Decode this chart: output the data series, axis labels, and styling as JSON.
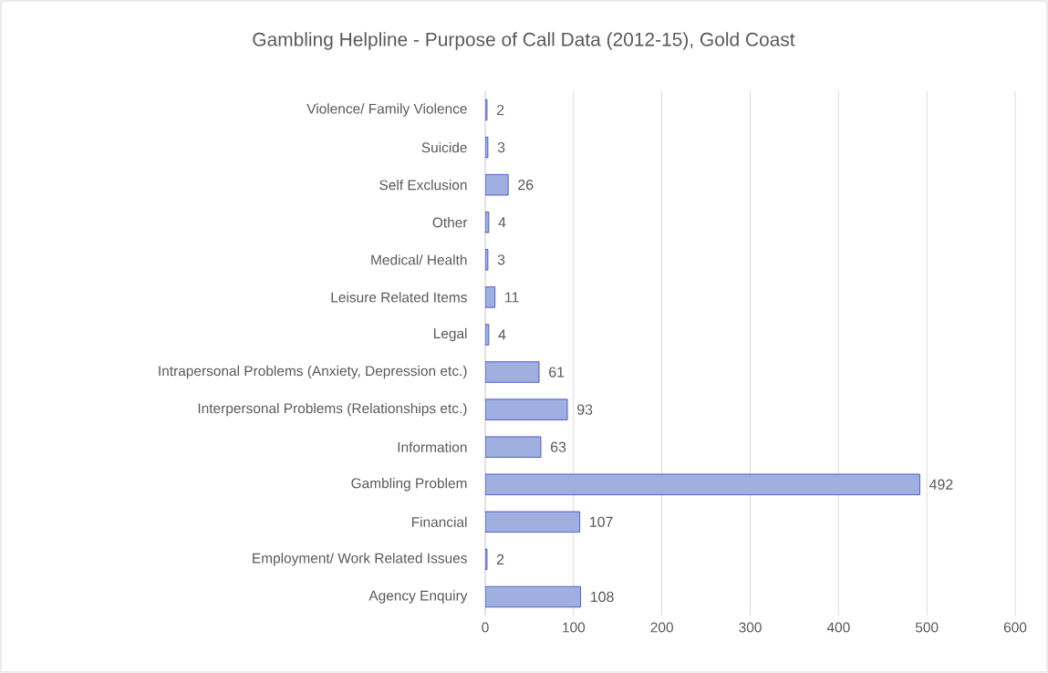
{
  "chart_data": {
    "type": "bar",
    "orientation": "horizontal",
    "title": "Gambling Helpline - Purpose of Call Data (2012-15), Gold Coast",
    "categories": [
      "Violence/ Family Violence",
      "Suicide",
      "Self Exclusion",
      "Other",
      "Medical/ Health",
      "Leisure Related Items",
      "Legal",
      "Intrapersonal Problems (Anxiety, Depression etc.)",
      "Interpersonal Problems (Relationships etc.)",
      "Information",
      "Gambling Problem",
      "Financial",
      "Employment/ Work Related Issues",
      "Agency Enquiry"
    ],
    "values": [
      2,
      3,
      26,
      4,
      3,
      11,
      4,
      61,
      93,
      63,
      492,
      107,
      2,
      108
    ],
    "color": "#9fb0e0",
    "xlim": [
      0,
      600
    ],
    "xticks": [
      0,
      100,
      200,
      300,
      400,
      500,
      600
    ],
    "grid": "x",
    "data_labels": true
  }
}
